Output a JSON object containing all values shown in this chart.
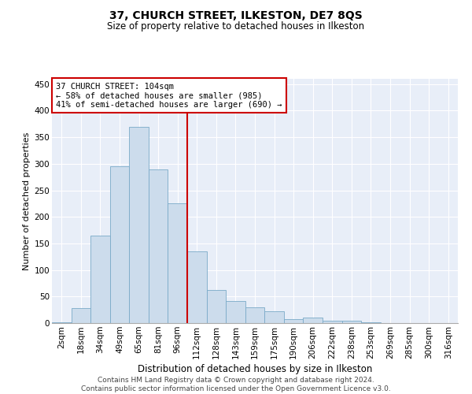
{
  "title": "37, CHURCH STREET, ILKESTON, DE7 8QS",
  "subtitle": "Size of property relative to detached houses in Ilkeston",
  "xlabel": "Distribution of detached houses by size in Ilkeston",
  "ylabel": "Number of detached properties",
  "annotation_line1": "37 CHURCH STREET: 104sqm",
  "annotation_line2": "← 58% of detached houses are smaller (985)",
  "annotation_line3": "41% of semi-detached houses are larger (690) →",
  "footer1": "Contains HM Land Registry data © Crown copyright and database right 2024.",
  "footer2": "Contains public sector information licensed under the Open Government Licence v3.0.",
  "categories": [
    "2sqm",
    "18sqm",
    "34sqm",
    "49sqm",
    "65sqm",
    "81sqm",
    "96sqm",
    "112sqm",
    "128sqm",
    "143sqm",
    "159sqm",
    "175sqm",
    "190sqm",
    "206sqm",
    "222sqm",
    "238sqm",
    "253sqm",
    "269sqm",
    "285sqm",
    "300sqm",
    "316sqm"
  ],
  "values": [
    2,
    28,
    165,
    295,
    370,
    290,
    225,
    135,
    62,
    42,
    30,
    22,
    8,
    10,
    5,
    4,
    1,
    0,
    0,
    0,
    0
  ],
  "bar_color": "#ccdcec",
  "bar_edge_color": "#7aaac8",
  "reference_line_color": "#cc0000",
  "annotation_box_edge_color": "#cc0000",
  "background_color": "#e8eef8",
  "grid_color": "#ffffff",
  "ylim": [
    0,
    460
  ],
  "yticks": [
    0,
    50,
    100,
    150,
    200,
    250,
    300,
    350,
    400,
    450
  ],
  "title_fontsize": 10,
  "subtitle_fontsize": 8.5,
  "ylabel_fontsize": 8,
  "xlabel_fontsize": 8.5,
  "tick_fontsize": 7.5,
  "annotation_fontsize": 7.5,
  "footer_fontsize": 6.5
}
